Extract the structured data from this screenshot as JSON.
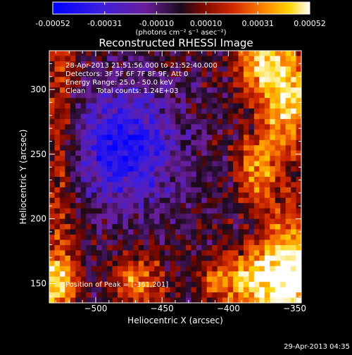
{
  "colorbar": {
    "tick_labels": [
      "-0.00052",
      "-0.00031",
      "-0.00010",
      "0.00010",
      "0.00031",
      "0.00052"
    ],
    "tick_values": [
      -0.00052,
      -0.00031,
      -0.0001,
      0.0001,
      0.00031,
      0.00052
    ],
    "range": [
      -0.00052,
      0.00052
    ],
    "unit_label": "(photons cm⁻² s⁻¹ asec⁻²)",
    "colormap": [
      "#0000ff",
      "#5a1cc8",
      "#7a1e8c",
      "#1a0a1a",
      "#8a0a00",
      "#d22a00",
      "#ff7a00",
      "#ffd200",
      "#ffffff"
    ]
  },
  "plot": {
    "title": "Reconstructed RHESSI Image",
    "xlabel": "Heliocentric X (arcsec)",
    "ylabel": "Heliocentric Y (arcsec)",
    "xlim": [
      -535,
      -345
    ],
    "ylim": [
      135,
      330
    ],
    "xticks": [
      -500,
      -450,
      -400,
      -350
    ],
    "yticks": [
      150,
      200,
      250,
      300
    ],
    "xtick_labels": [
      "−500",
      "−450",
      "−400",
      "−350"
    ],
    "ytick_labels": [
      "150",
      "200",
      "250",
      "300"
    ]
  },
  "info": {
    "time_range": "28-Apr-2013 21:51:56.000 to 21:52:40.000",
    "detectors": "Detectors: 3F 5F 6F 7F 8F 9F, Att 0",
    "energy_range": "Energy Range: 25.0 - 50.0 keV",
    "method_counts": "Clean     Total counts: 1.24E+03",
    "peak_position": "Position of Peak = [-361,201]"
  },
  "timestamp": "29-Apr-2013 04:35"
}
